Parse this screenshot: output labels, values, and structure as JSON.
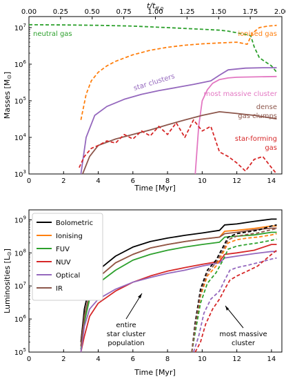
{
  "chart_data": [
    {
      "type": "line",
      "xlabel": "Time [Myr]",
      "ylabel": "Masses [M⊙]",
      "top_xlabel": "t/t_ff,0",
      "xlim": [
        0,
        14.6
      ],
      "ylim": [
        1000,
        20000000
      ],
      "yscale": "log",
      "xticks": [
        "0",
        "2",
        "4",
        "6",
        "8",
        "10",
        "12",
        "14"
      ],
      "top_xticks": [
        "0.00",
        "0.25",
        "0.50",
        "0.75",
        "1.00",
        "1.25",
        "1.50",
        "1.75",
        "2.00"
      ],
      "yticks": [
        "10^3",
        "10^4",
        "10^5",
        "10^6",
        "10^7"
      ],
      "series": [
        {
          "name": "neutral gas",
          "color": "#2ca02c",
          "style": "dashed",
          "x": [
            0,
            2,
            4,
            6,
            8,
            10,
            11,
            11.5,
            12,
            12.5,
            12.8,
            13.0,
            13.3,
            13.6,
            14.0,
            14.3
          ],
          "y": [
            12000000,
            11800000,
            11500000,
            11000000,
            10000000,
            9000000,
            8500000,
            8000000,
            7200000,
            6500000,
            6000000,
            3000000,
            1500000,
            1200000,
            900000,
            600000
          ]
        },
        {
          "name": "ionised gas",
          "color": "#ff7f0e",
          "style": "dashed",
          "x": [
            3.0,
            3.3,
            3.6,
            4.0,
            4.5,
            5.0,
            6.0,
            7.0,
            8.0,
            9.0,
            10.0,
            11.0,
            12.0,
            12.6,
            12.9,
            13.3,
            13.8,
            14.3
          ],
          "y": [
            30000,
            150000,
            350000,
            600000,
            900000,
            1200000,
            1800000,
            2400000,
            2900000,
            3300000,
            3600000,
            3800000,
            4000000,
            3500000,
            7000000,
            10000000,
            11000000,
            11500000
          ]
        },
        {
          "name": "star clusters",
          "color": "#9467bd",
          "style": "solid",
          "x": [
            3.0,
            3.3,
            3.8,
            4.5,
            5.5,
            6.5,
            7.5,
            8.5,
            9.5,
            10.5,
            11.0,
            11.5,
            12.5,
            13.5,
            14.3
          ],
          "y": [
            1000,
            10000,
            40000,
            70000,
            110000,
            150000,
            190000,
            230000,
            280000,
            350000,
            500000,
            700000,
            780000,
            800000,
            800000
          ]
        },
        {
          "name": "most massive cluster",
          "color": "#e377c2",
          "style": "solid",
          "x": [
            9.6,
            9.8,
            10.0,
            10.3,
            10.6,
            11.0,
            11.5,
            12.0,
            13.0,
            14.3
          ],
          "y": [
            1000,
            20000,
            100000,
            200000,
            300000,
            380000,
            420000,
            440000,
            450000,
            460000
          ]
        },
        {
          "name": "dense gas clumps",
          "color": "#8c564b",
          "style": "solid",
          "x": [
            3.1,
            3.5,
            4.0,
            5.0,
            6.0,
            7.0,
            8.0,
            9.0,
            10.0,
            11.0,
            12.0,
            13.0,
            14.3
          ],
          "y": [
            1000,
            3000,
            6000,
            9000,
            12000,
            16000,
            22000,
            30000,
            40000,
            50000,
            45000,
            40000,
            32000
          ]
        },
        {
          "name": "star-forming gas",
          "color": "#d62728",
          "style": "dashed",
          "x": [
            2.9,
            3.2,
            3.6,
            4.0,
            4.5,
            5.0,
            5.5,
            6.0,
            6.5,
            7.0,
            7.5,
            8.0,
            8.5,
            9.0,
            9.5,
            10.0,
            10.5,
            11.0,
            11.5,
            12.0,
            12.5,
            13.0,
            13.5,
            14.0,
            14.3
          ],
          "y": [
            1500,
            3000,
            5000,
            6000,
            8000,
            7000,
            12000,
            9000,
            15000,
            11000,
            20000,
            12000,
            25000,
            10000,
            30000,
            15000,
            20000,
            4000,
            3000,
            2000,
            1200,
            2500,
            3000,
            1500,
            1000
          ]
        }
      ],
      "annotations": [
        "neutral gas",
        "ionised gas",
        "star clusters",
        "most massive cluster",
        "dense",
        "gas clumps",
        "star-forming",
        "gas"
      ]
    },
    {
      "type": "line",
      "xlabel": "Time [Myr]",
      "ylabel": "Luminosities [L⊙]",
      "xlim": [
        0,
        14.6
      ],
      "ylim": [
        100000,
        2000000000
      ],
      "yscale": "log",
      "xticks": [
        "0",
        "2",
        "4",
        "6",
        "8",
        "10",
        "12",
        "14"
      ],
      "yticks": [
        "10^5",
        "10^6",
        "10^7",
        "10^8",
        "10^9"
      ],
      "legend_position": "top-left",
      "series": [
        {
          "name": "Bolometric",
          "color": "#000000",
          "x": [
            3.0,
            3.2,
            3.5,
            4.0,
            5.0,
            6.0,
            7.0,
            8.0,
            9.0,
            10.0,
            11.0,
            11.3,
            12.0,
            13.0,
            14.0,
            14.3
          ],
          "y": [
            200000,
            2000000,
            10000000,
            30000000,
            80000000,
            150000000,
            220000000,
            280000000,
            340000000,
            400000000,
            480000000,
            700000000,
            750000000,
            900000000,
            1050000000,
            1050000000
          ]
        },
        {
          "name": "Ionising",
          "color": "#ff7f0e",
          "x": [
            3.0,
            3.2,
            3.5,
            4.0,
            5.0,
            6.0,
            7.0,
            8.0,
            9.0,
            10.0,
            11.0,
            11.3,
            12.0,
            13.0,
            14.0,
            14.3
          ],
          "y": [
            150000,
            1200000,
            6000000,
            18000000,
            50000000,
            90000000,
            140000000,
            180000000,
            220000000,
            260000000,
            300000000,
            450000000,
            480000000,
            550000000,
            650000000,
            650000000
          ]
        },
        {
          "name": "FUV",
          "color": "#2ca02c",
          "x": [
            3.0,
            3.2,
            3.5,
            4.0,
            5.0,
            6.0,
            7.0,
            8.0,
            9.0,
            10.0,
            11.0,
            11.3,
            12.0,
            13.0,
            14.0,
            14.3
          ],
          "y": [
            120000,
            800000,
            4000000,
            12000000,
            30000000,
            60000000,
            90000000,
            120000000,
            150000000,
            180000000,
            210000000,
            300000000,
            320000000,
            350000000,
            420000000,
            420000000
          ]
        },
        {
          "name": "NUV",
          "color": "#d62728",
          "x": [
            3.0,
            3.2,
            3.5,
            4.0,
            5.0,
            6.0,
            7.0,
            8.0,
            9.0,
            10.0,
            11.0,
            11.3,
            12.0,
            13.0,
            14.0,
            14.3
          ],
          "y": [
            100000,
            300000,
            1200000,
            3000000,
            7000000,
            13000000,
            20000000,
            28000000,
            36000000,
            45000000,
            55000000,
            90000000,
            100000000,
            120000000,
            180000000,
            180000000
          ]
        },
        {
          "name": "Optical",
          "color": "#9467bd",
          "x": [
            3.0,
            3.2,
            3.5,
            4.0,
            5.0,
            6.0,
            7.0,
            8.0,
            9.0,
            10.0,
            11.0,
            11.3,
            12.0,
            13.0,
            14.0,
            14.3
          ],
          "y": [
            100000,
            600000,
            2000000,
            4000000,
            8000000,
            13000000,
            18000000,
            24000000,
            30000000,
            40000000,
            50000000,
            70000000,
            80000000,
            95000000,
            110000000,
            110000000
          ]
        },
        {
          "name": "IR",
          "color": "#8c564b",
          "x": [
            3.0,
            3.2,
            3.5,
            4.0,
            5.0,
            6.0,
            7.0,
            8.0,
            9.0,
            10.0,
            11.0,
            11.3,
            12.0,
            13.0,
            14.0,
            14.3
          ],
          "y": [
            150000,
            1200000,
            6000000,
            18000000,
            50000000,
            90000000,
            140000000,
            180000000,
            220000000,
            260000000,
            300000000,
            380000000,
            420000000,
            500000000,
            560000000,
            560000000
          ]
        }
      ],
      "massive_series": [
        {
          "color": "#000000",
          "x": [
            9.4,
            9.6,
            9.9,
            10.3,
            10.8,
            11.2,
            11.5,
            12.0,
            12.6,
            13.2,
            14.0,
            14.3
          ],
          "y": [
            100000,
            800000,
            8000000,
            30000000,
            60000000,
            150000000,
            300000000,
            380000000,
            430000000,
            480000000,
            650000000,
            700000000
          ]
        },
        {
          "color": "#ff7f0e",
          "x": [
            9.4,
            9.6,
            9.9,
            10.3,
            10.8,
            11.2,
            11.5,
            12.0,
            12.6,
            13.2,
            14.0,
            14.3
          ],
          "y": [
            100000,
            500000,
            5000000,
            20000000,
            40000000,
            100000000,
            200000000,
            250000000,
            280000000,
            300000000,
            350000000,
            380000000
          ]
        },
        {
          "color": "#2ca02c",
          "x": [
            9.4,
            9.6,
            9.9,
            10.3,
            10.8,
            11.2,
            11.5,
            12.0,
            12.6,
            13.2,
            14.0,
            14.3
          ],
          "y": [
            100000,
            400000,
            3000000,
            12000000,
            25000000,
            60000000,
            130000000,
            160000000,
            180000000,
            200000000,
            240000000,
            260000000
          ]
        },
        {
          "color": "#9467bd",
          "x": [
            9.5,
            9.8,
            10.1,
            10.5,
            11.0,
            11.3,
            11.6,
            12.0,
            12.6,
            13.2,
            14.0,
            14.3
          ],
          "y": [
            100000,
            300000,
            1500000,
            4000000,
            7000000,
            15000000,
            30000000,
            36000000,
            42000000,
            50000000,
            65000000,
            70000000
          ]
        },
        {
          "color": "#d62728",
          "x": [
            9.6,
            9.9,
            10.2,
            10.6,
            11.0,
            11.3,
            11.6,
            12.0,
            12.6,
            13.2,
            14.0,
            14.3
          ],
          "y": [
            100000,
            200000,
            700000,
            2000000,
            4000000,
            8000000,
            15000000,
            20000000,
            28000000,
            40000000,
            90000000,
            120000000
          ]
        },
        {
          "color": "#8c564b",
          "x": [
            9.4,
            9.6,
            9.9,
            10.3,
            10.8,
            11.2,
            11.5,
            12.0,
            12.6,
            13.2,
            14.0,
            14.3
          ],
          "y": [
            100000,
            600000,
            6000000,
            25000000,
            50000000,
            120000000,
            250000000,
            320000000,
            360000000,
            400000000,
            500000000,
            550000000
          ]
        }
      ],
      "annotations": [
        "entire",
        "star cluster",
        "population",
        "most massive",
        "cluster"
      ]
    }
  ],
  "text": {
    "top_axis_label": "t/t",
    "top_axis_sub": "ff,0",
    "mass_ylabel": "Masses [M",
    "mass_ylabel_end": "]",
    "lum_ylabel": "Luminosities [L",
    "lum_ylabel_end": "]",
    "sun_symbol": "⊙",
    "xlabel_top": "Time [Myr]",
    "xlabel_bottom": "Time [Myr]"
  }
}
